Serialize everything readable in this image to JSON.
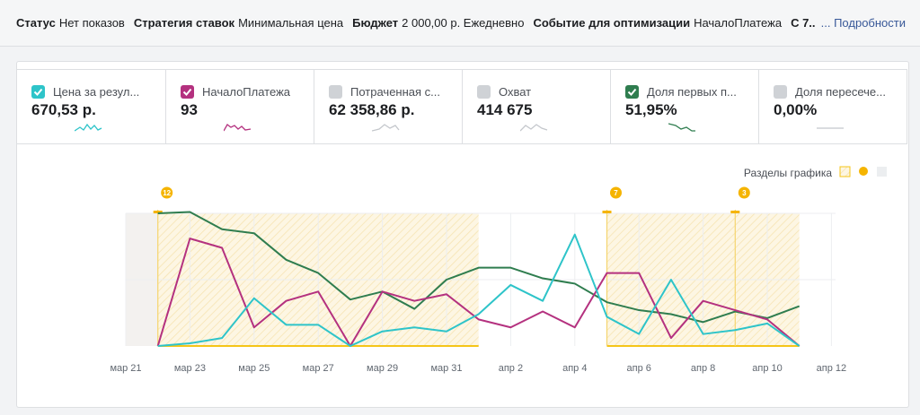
{
  "status_bar": {
    "items": [
      {
        "label": "Статус",
        "value": "Нет показов"
      },
      {
        "label": "Стратегия ставок",
        "value": "Минимальная цена"
      },
      {
        "label": "Бюджет",
        "value": "2 000,00 р. Ежедневно"
      },
      {
        "label": "Событие для оптимизации",
        "value": "НачалоПлатежа"
      }
    ],
    "overflow": "С 7...",
    "link": "... Подробности"
  },
  "metrics": [
    {
      "label": "Цена за резул...",
      "value": "670,53 р.",
      "checked": true,
      "color": "#2ec4c9"
    },
    {
      "label": "НачалоПлатежа",
      "value": "93",
      "checked": true,
      "color": "#b4317f"
    },
    {
      "label": "Потраченная с...",
      "value": "62 358,86 р.",
      "checked": false,
      "color": "#cfd2d6"
    },
    {
      "label": "Охват",
      "value": "414 675",
      "checked": false,
      "color": "#cfd2d6"
    },
    {
      "label": "Доля первых п...",
      "value": "51,95%",
      "checked": true,
      "color": "#2f7d4f"
    },
    {
      "label": "Доля пересече...",
      "value": "0,00%",
      "checked": false,
      "color": "#cfd2d6"
    }
  ],
  "chart": {
    "type": "line",
    "legend": "Разделы графика",
    "x_labels": [
      "мар 21",
      "мар 23",
      "мар 25",
      "мар 27",
      "мар 29",
      "мар 31",
      "апр 2",
      "апр 4",
      "апр 6",
      "апр 8",
      "апр 10",
      "апр 12"
    ],
    "ylim": [
      0,
      100
    ],
    "markers": [
      "12",
      "7",
      "3"
    ],
    "series": [
      {
        "color": "#2f7d4f",
        "values": [
          100,
          101,
          88,
          85,
          65,
          55,
          35,
          41,
          28,
          50,
          59,
          59,
          51,
          47,
          33,
          27,
          24,
          18,
          26,
          21,
          30
        ]
      },
      {
        "color": "#b4317f",
        "values": [
          0,
          81,
          74,
          14,
          34,
          41,
          0,
          41,
          34,
          39,
          20,
          14,
          26,
          14,
          55,
          55,
          6,
          34,
          27,
          20,
          0
        ]
      },
      {
        "color": "#2ec4c9",
        "values": [
          0,
          2,
          6,
          36,
          16,
          16,
          0,
          11,
          14,
          11,
          24,
          46,
          34,
          84,
          22,
          9,
          50,
          9,
          12,
          17,
          0
        ]
      }
    ]
  }
}
